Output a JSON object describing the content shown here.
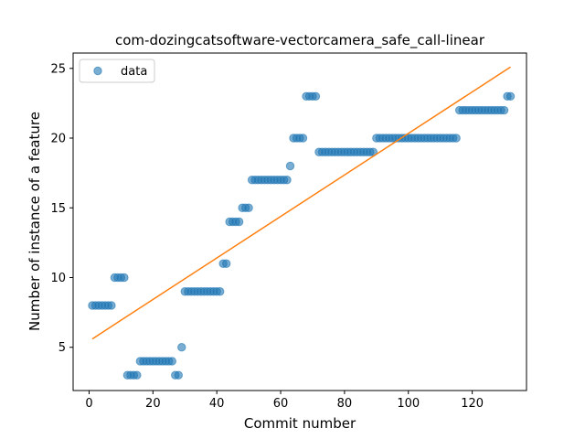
{
  "chart_data": {
    "type": "scatter",
    "title": "com-dozingcatsoftware-vectorcamera_safe_call-linear",
    "xlabel": "Commit number",
    "ylabel": "Number of instance of a feature",
    "xlim": [
      -5,
      137
    ],
    "ylim": [
      1.9,
      26.1
    ],
    "xticks": [
      0,
      20,
      40,
      60,
      80,
      100,
      120
    ],
    "yticks": [
      5,
      10,
      15,
      20,
      25
    ],
    "legend": {
      "position": "top-left",
      "entries": [
        "data"
      ]
    },
    "colors": {
      "points": "#1f77b4",
      "fit": "#ff7f0e"
    },
    "series": [
      {
        "name": "data",
        "x": [
          1,
          2,
          3,
          4,
          5,
          6,
          7,
          8,
          9,
          10,
          11,
          12,
          13,
          14,
          15,
          16,
          17,
          18,
          19,
          20,
          21,
          22,
          23,
          24,
          25,
          26,
          27,
          28,
          29,
          30,
          31,
          32,
          33,
          34,
          35,
          36,
          37,
          38,
          39,
          40,
          41,
          42,
          43,
          44,
          45,
          46,
          47,
          48,
          49,
          50,
          51,
          52,
          53,
          54,
          55,
          56,
          57,
          58,
          59,
          60,
          61,
          62,
          63,
          64,
          65,
          66,
          67,
          68,
          69,
          70,
          71,
          72,
          73,
          74,
          75,
          76,
          77,
          78,
          79,
          80,
          81,
          82,
          83,
          84,
          85,
          86,
          87,
          88,
          89,
          90,
          91,
          92,
          93,
          94,
          95,
          96,
          97,
          98,
          99,
          100,
          101,
          102,
          103,
          104,
          105,
          106,
          107,
          108,
          109,
          110,
          111,
          112,
          113,
          114,
          115,
          116,
          117,
          118,
          119,
          120,
          121,
          122,
          123,
          124,
          125,
          126,
          127,
          128,
          129,
          130,
          131,
          132
        ],
        "y": [
          8,
          8,
          8,
          8,
          8,
          8,
          8,
          10,
          10,
          10,
          10,
          3,
          3,
          3,
          3,
          4,
          4,
          4,
          4,
          4,
          4,
          4,
          4,
          4,
          4,
          4,
          3,
          3,
          5,
          9,
          9,
          9,
          9,
          9,
          9,
          9,
          9,
          9,
          9,
          9,
          9,
          11,
          11,
          14,
          14,
          14,
          14,
          15,
          15,
          15,
          17,
          17,
          17,
          17,
          17,
          17,
          17,
          17,
          17,
          17,
          17,
          17,
          18,
          20,
          20,
          20,
          20,
          23,
          23,
          23,
          23,
          19,
          19,
          19,
          19,
          19,
          19,
          19,
          19,
          19,
          19,
          19,
          19,
          19,
          19,
          19,
          19,
          19,
          19,
          20,
          20,
          20,
          20,
          20,
          20,
          20,
          20,
          20,
          20,
          20,
          20,
          20,
          20,
          20,
          20,
          20,
          20,
          20,
          20,
          20,
          20,
          20,
          20,
          20,
          20,
          22,
          22,
          22,
          22,
          22,
          22,
          22,
          22,
          22,
          22,
          22,
          22,
          22,
          22,
          22,
          23,
          23
        ]
      },
      {
        "name": "",
        "type": "line",
        "x": [
          1,
          132
        ],
        "y": [
          5.6,
          25.1
        ]
      }
    ]
  }
}
